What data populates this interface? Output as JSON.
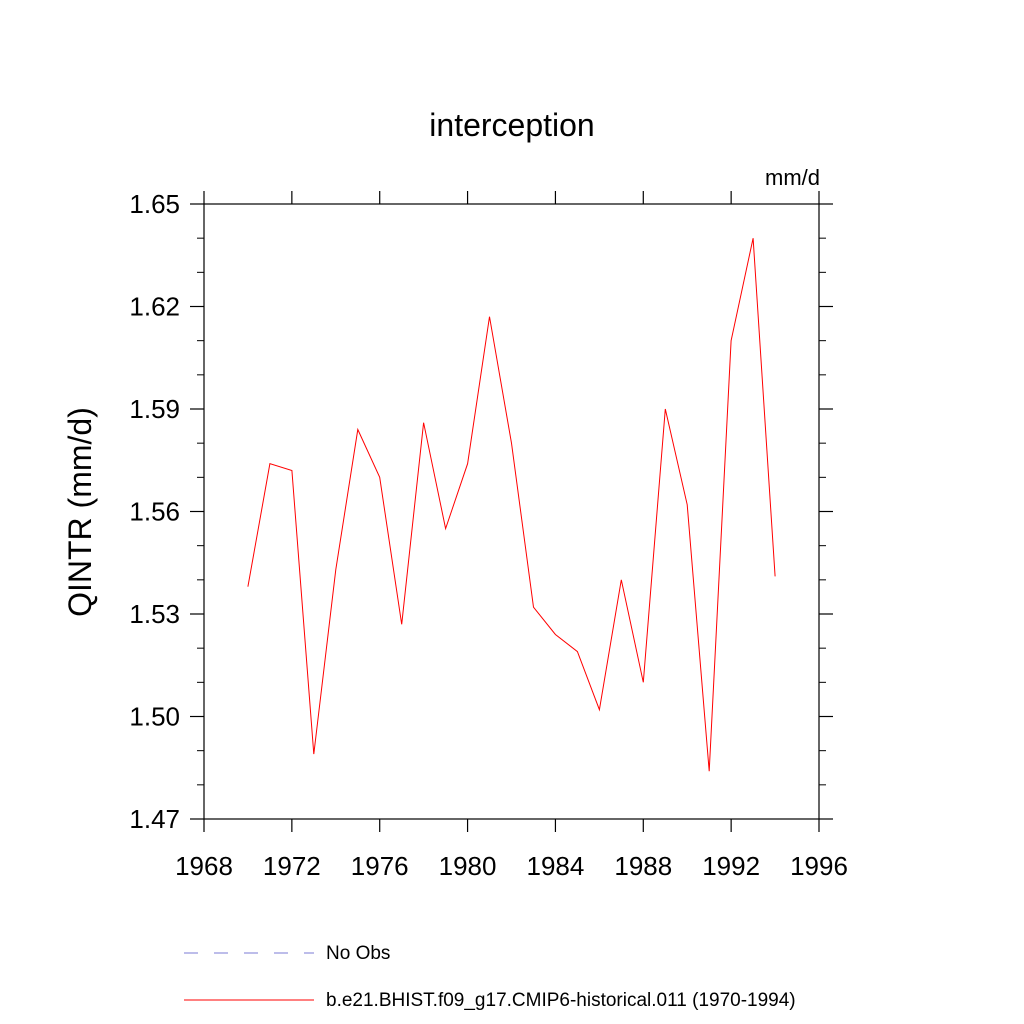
{
  "chart_data": {
    "type": "line",
    "title": "interception",
    "units_label": "mm/d",
    "ylabel": "QINTR  (mm/d)",
    "xlabel": "",
    "xlim": [
      1968,
      1996
    ],
    "ylim": [
      1.47,
      1.65
    ],
    "x_ticks": [
      1968,
      1972,
      1976,
      1980,
      1984,
      1988,
      1992,
      1996
    ],
    "y_ticks": [
      1.47,
      1.5,
      1.53,
      1.56,
      1.59,
      1.62,
      1.65
    ],
    "x_tick_labels": [
      "1968",
      "1972",
      "1976",
      "1980",
      "1984",
      "1988",
      "1992",
      "1996"
    ],
    "y_tick_labels": [
      "1.47",
      "1.50",
      "1.53",
      "1.56",
      "1.59",
      "1.62",
      "1.65"
    ],
    "grid": false,
    "legend_position": "bottom",
    "series": [
      {
        "name": "b.e21.BHIST.f09_g17.CMIP6-historical.011 (1970-1994)",
        "color": "#ff0000",
        "style": "solid",
        "x": [
          1970,
          1971,
          1972,
          1973,
          1974,
          1975,
          1976,
          1977,
          1978,
          1979,
          1980,
          1981,
          1982,
          1983,
          1984,
          1985,
          1986,
          1987,
          1988,
          1989,
          1990,
          1991,
          1992,
          1993,
          1994
        ],
        "y": [
          1.538,
          1.574,
          1.572,
          1.489,
          1.543,
          1.584,
          1.57,
          1.527,
          1.586,
          1.555,
          1.574,
          1.617,
          1.58,
          1.532,
          1.524,
          1.519,
          1.502,
          1.54,
          1.51,
          1.59,
          1.562,
          1.484,
          1.61,
          1.64,
          1.541
        ]
      }
    ],
    "legend": [
      {
        "label": "No Obs",
        "color": "#7b7bd6",
        "style": "dashed"
      },
      {
        "label": "b.e21.BHIST.f09_g17.CMIP6-historical.011 (1970-1994)",
        "color": "#ff0000",
        "style": "solid"
      }
    ]
  }
}
